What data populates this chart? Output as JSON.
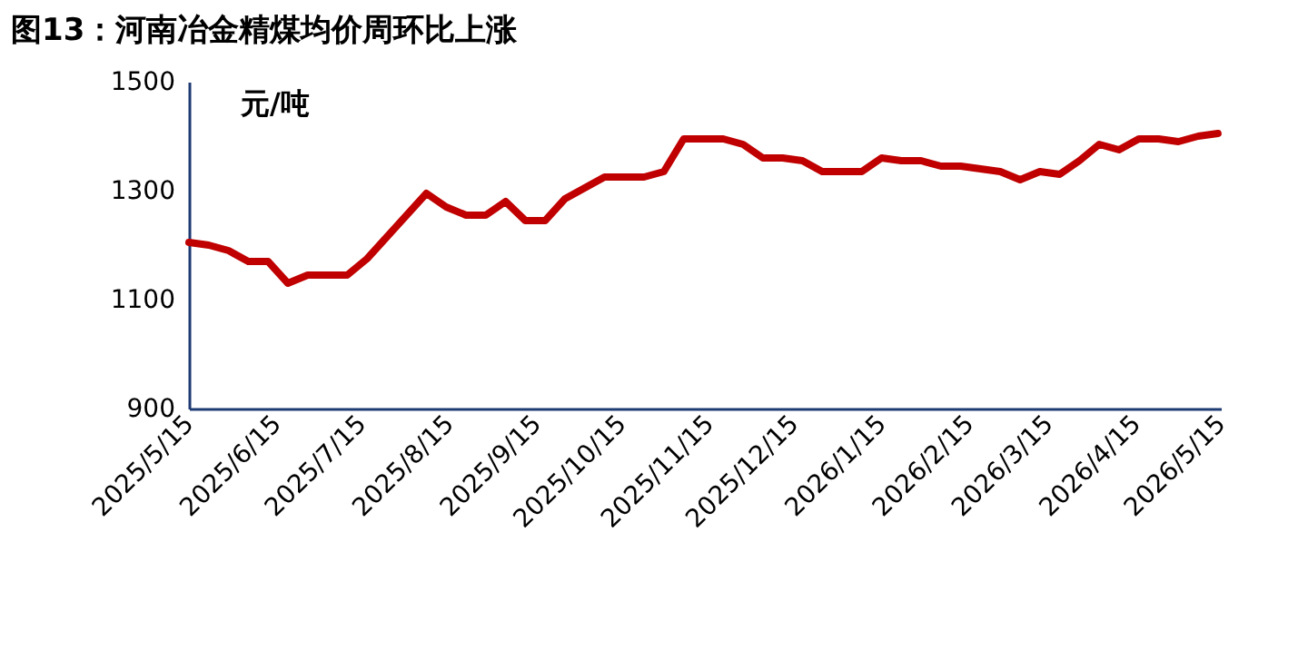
{
  "chart_data": {
    "type": "line",
    "title": "图13：河南冶金精煤均价周环比上涨",
    "ylabel": "元/吨",
    "x": [
      "2025-05-15",
      "2025-05-22",
      "2025-05-29",
      "2025-06-05",
      "2025-06-12",
      "2025-06-19",
      "2025-06-26",
      "2025-07-03",
      "2025-07-10",
      "2025-07-17",
      "2025-07-24",
      "2025-07-31",
      "2025-08-07",
      "2025-08-14",
      "2025-08-21",
      "2025-08-28",
      "2025-09-04",
      "2025-09-11",
      "2025-09-18",
      "2025-09-25",
      "2025-10-02",
      "2025-10-09",
      "2025-10-16",
      "2025-10-23",
      "2025-10-30",
      "2025-11-06",
      "2025-11-13",
      "2025-11-20",
      "2025-11-27",
      "2025-12-04",
      "2025-12-11",
      "2025-12-18",
      "2025-12-25",
      "2026-01-01",
      "2026-01-08",
      "2026-01-15",
      "2026-01-22",
      "2026-01-29",
      "2026-02-05",
      "2026-02-12",
      "2026-02-19",
      "2026-02-26",
      "2026-03-05",
      "2026-03-12",
      "2026-03-19",
      "2026-03-26",
      "2026-04-02",
      "2026-04-09",
      "2026-04-16",
      "2026-04-23",
      "2026-04-30",
      "2026-05-07",
      "2026-05-14"
    ],
    "series": [
      {
        "color": "#c00000",
        "values": [
          1205,
          1200,
          1190,
          1170,
          1170,
          1130,
          1145,
          1145,
          1145,
          1175,
          1215,
          1255,
          1295,
          1270,
          1255,
          1255,
          1280,
          1245,
          1245,
          1285,
          1305,
          1325,
          1325,
          1325,
          1335,
          1395,
          1395,
          1395,
          1385,
          1360,
          1360,
          1355,
          1335,
          1335,
          1335,
          1360,
          1355,
          1355,
          1345,
          1345,
          1340,
          1335,
          1320,
          1335,
          1330,
          1355,
          1385,
          1375,
          1395,
          1395,
          1390,
          1400,
          1405
        ]
      }
    ],
    "xlim": [
      "2025-05-15",
      "2026-05-15"
    ],
    "xticks": [
      {
        "value": "2025-05-15",
        "label": "2025/5/15"
      },
      {
        "value": "2025-06-15",
        "label": "2025/6/15"
      },
      {
        "value": "2025-07-15",
        "label": "2025/7/15"
      },
      {
        "value": "2025-08-15",
        "label": "2025/8/15"
      },
      {
        "value": "2025-09-15",
        "label": "2025/9/15"
      },
      {
        "value": "2025-10-15",
        "label": "2025/10/15"
      },
      {
        "value": "2025-11-15",
        "label": "2025/11/15"
      },
      {
        "value": "2025-12-15",
        "label": "2025/12/15"
      },
      {
        "value": "2026-01-15",
        "label": "2026/1/15"
      },
      {
        "value": "2026-02-15",
        "label": "2026/2/15"
      },
      {
        "value": "2026-03-15",
        "label": "2026/3/15"
      },
      {
        "value": "2026-04-15",
        "label": "2026/4/15"
      },
      {
        "value": "2026-05-15",
        "label": "2026/5/15"
      }
    ],
    "ylim": [
      900,
      1500
    ],
    "yticks": [
      900,
      1100,
      1300,
      1500
    ]
  }
}
